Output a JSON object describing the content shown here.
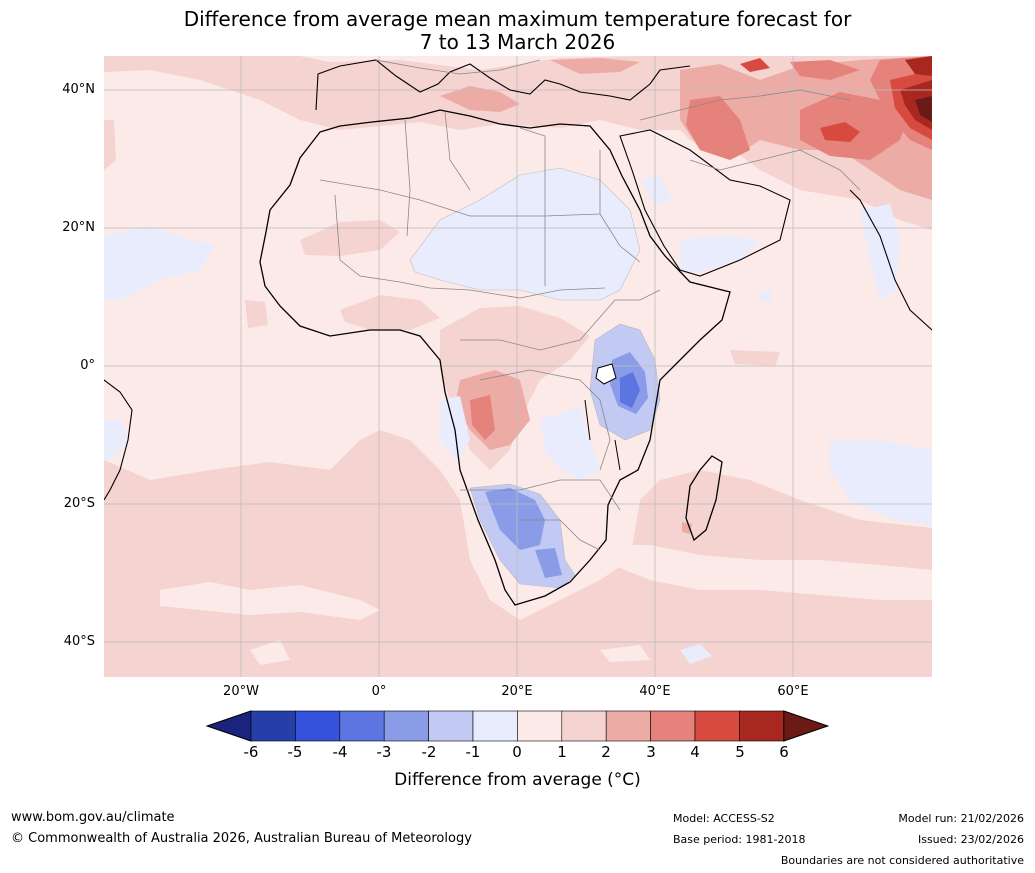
{
  "title": {
    "line1": "Difference from average mean maximum temperature forecast for",
    "line2": "7 to 13 March 2026"
  },
  "map": {
    "type": "anomaly-map",
    "region": "Africa and surrounding oceans",
    "lat_labels": [
      "40°N",
      "20°N",
      "0°",
      "20°S",
      "40°S"
    ],
    "lon_labels": [
      "20°W",
      "0°",
      "20°E",
      "40°E",
      "60°E"
    ],
    "lat_values": [
      40,
      20,
      0,
      -20,
      -40
    ],
    "lon_values": [
      -20,
      0,
      20,
      40,
      60
    ],
    "lon_range": [
      -40,
      80
    ],
    "lat_range": [
      -45,
      45
    ],
    "colors": {
      "ocean_land_neutral": "#fceae8",
      "grid": "#bdbdbd"
    }
  },
  "colorbar": {
    "ticks": [
      "-6",
      "-5",
      "-4",
      "-3",
      "-2",
      "-1",
      "0",
      "1",
      "2",
      "3",
      "4",
      "5",
      "6"
    ],
    "colors": [
      "#1a237e",
      "#263fa8",
      "#3552dd",
      "#5d75e0",
      "#8a9be8",
      "#c2caf4",
      "#e9ecfc",
      "#fceae8",
      "#f5d3d0",
      "#edaba6",
      "#e5827b",
      "#d74a3f",
      "#a8271f",
      "#6b1a15"
    ],
    "label": "Difference from average (°C)"
  },
  "footer": {
    "url": "www.bom.gov.au/climate",
    "copyright": "© Commonwealth of Australia 2026, Australian Bureau of Meteorology",
    "model": "Model: ACCESS-S2",
    "base_period": "Base period: 1981-2018",
    "model_run": "Model run: 21/02/2026",
    "issued": "Issued: 23/02/2026",
    "disclaimer": "Boundaries are not considered authoritative"
  }
}
